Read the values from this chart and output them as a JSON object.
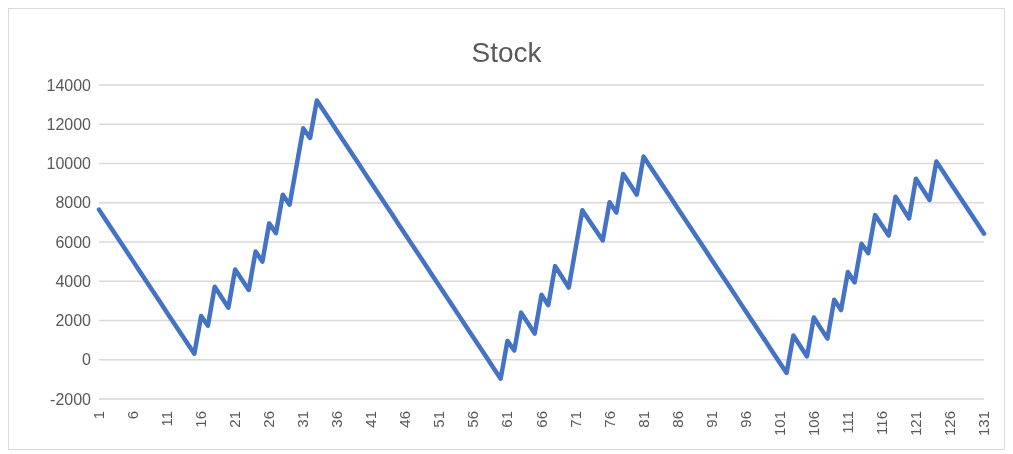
{
  "chart_data": {
    "type": "line",
    "title": "Stock",
    "categories": [
      "1",
      null,
      null,
      null,
      null,
      "6",
      null,
      null,
      null,
      null,
      "11",
      null,
      null,
      null,
      null,
      "16",
      null,
      null,
      null,
      null,
      "21",
      null,
      null,
      null,
      null,
      "26",
      null,
      null,
      null,
      null,
      "31",
      null,
      null,
      null,
      null,
      "36",
      null,
      null,
      null,
      null,
      "41",
      null,
      null,
      null,
      null,
      "46",
      null,
      null,
      null,
      null,
      "51",
      null,
      null,
      null,
      null,
      "56",
      null,
      null,
      null,
      null,
      "61",
      null,
      null,
      null,
      null,
      "66",
      null,
      null,
      null,
      null,
      "71",
      null,
      null,
      null,
      null,
      "76",
      null,
      null,
      null,
      null,
      "81",
      null,
      null,
      null,
      null,
      "86",
      null,
      null,
      null,
      null,
      "91",
      null,
      null,
      null,
      null,
      "96",
      null,
      null,
      null,
      null,
      "101",
      null,
      null,
      null,
      null,
      "106",
      null,
      null,
      null,
      null,
      "111",
      null,
      null,
      null,
      null,
      "116",
      null,
      null,
      null,
      null,
      "121",
      null,
      null,
      null,
      null,
      "126",
      null,
      null,
      null,
      null,
      "131"
    ],
    "series": [
      {
        "color": "#4472c4",
        "values": [
          7650,
          7125,
          6600,
          6075,
          5550,
          5025,
          4500,
          3975,
          3450,
          2925,
          2400,
          1875,
          1350,
          825,
          300,
          2230,
          1740,
          3720,
          3190,
          2650,
          4600,
          4080,
          3560,
          5520,
          5000,
          6950,
          6450,
          8410,
          7900,
          9850,
          11790,
          11300,
          13210,
          12685,
          12160,
          11635,
          11110,
          10585,
          10060,
          9535,
          9010,
          8485,
          7960,
          7435,
          6910,
          6385,
          5860,
          5335,
          4810,
          4285,
          3760,
          3235,
          2710,
          2185,
          1660,
          1135,
          610,
          85,
          -440,
          -965,
          960,
          470,
          2400,
          1870,
          1330,
          3310,
          2780,
          4770,
          4230,
          3680,
          5650,
          7620,
          7100,
          6590,
          6080,
          8030,
          7500,
          9470,
          8940,
          8410,
          10350,
          9825,
          9300,
          8775,
          8250,
          7725,
          7200,
          6675,
          6150,
          5625,
          5100,
          4575,
          4050,
          3525,
          3000,
          2475,
          1950,
          1425,
          900,
          375,
          -150,
          -675,
          1240,
          700,
          170,
          2150,
          1610,
          1080,
          3060,
          2530,
          4470,
          3940,
          5910,
          5430,
          7370,
          6850,
          6330,
          8310,
          7750,
          7200,
          9220,
          8680,
          8140,
          10100,
          9575,
          9050,
          8525,
          8000,
          7475,
          6950,
          6425
        ]
      }
    ],
    "ylim": [
      -2000,
      14000
    ],
    "yticks": [
      -2000,
      0,
      2000,
      4000,
      6000,
      8000,
      10000,
      12000,
      14000
    ],
    "grid": "y",
    "legend": false,
    "marker": "none",
    "line_style": "solid"
  }
}
